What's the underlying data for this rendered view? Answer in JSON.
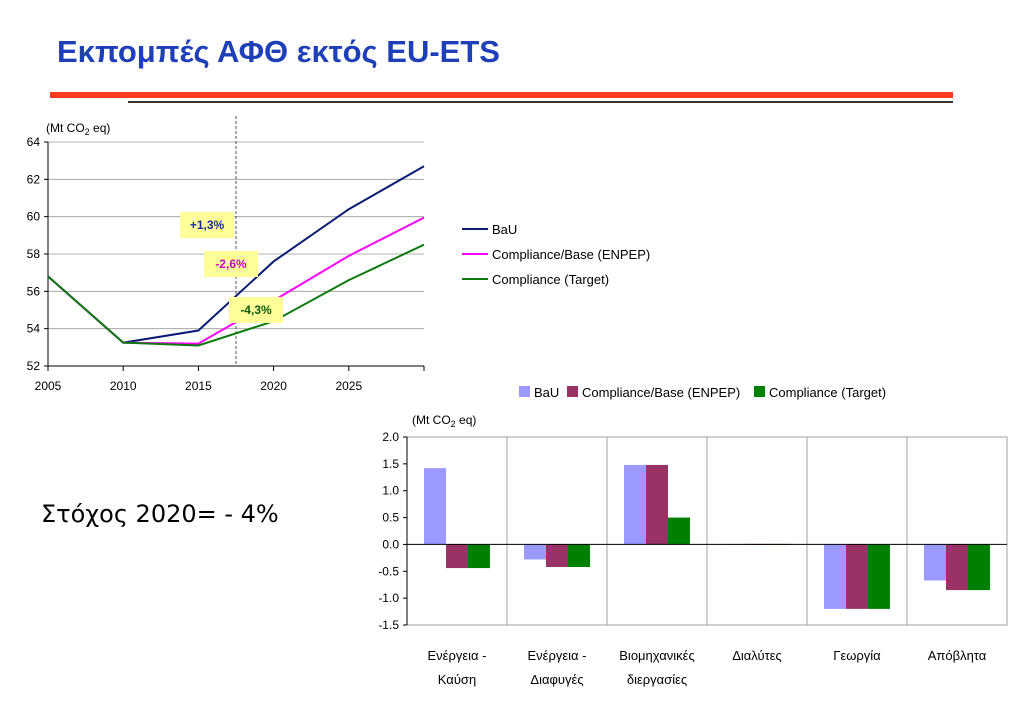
{
  "title": "Εκπομπές ΑΦΘ εκτός EU-ETS",
  "target_note": "Στόχος 2020= - 4%",
  "colors": {
    "title": "#1f3fb8",
    "rule_red": "#ff3b1f"
  },
  "chart_data": [
    {
      "type": "line",
      "unit_label": {
        "prefix": "(Mt CO",
        "sub": "2",
        "suffix": " eq)"
      },
      "x_ticks": [
        "2005",
        "2010",
        "2015",
        "2020",
        "2025"
      ],
      "ylim": [
        52,
        64
      ],
      "xlim": [
        2005,
        2030
      ],
      "y_ticks": [
        "64",
        "62",
        "60",
        "58",
        "56",
        "54",
        "52"
      ],
      "grid": true,
      "marker_year": 2017.5,
      "legend_position": "right",
      "series": [
        {
          "name": "BaU",
          "color": "#0b1a73",
          "x": [
            2005,
            2010,
            2015,
            2020,
            2025,
            2030
          ],
          "values": [
            56.8,
            53.25,
            53.9,
            57.6,
            60.4,
            62.7
          ]
        },
        {
          "name": "Compliance/Base (ENPEP)",
          "color": "#ff00ff",
          "x": [
            2005,
            2010,
            2015,
            2020,
            2025,
            2030
          ],
          "values": [
            56.8,
            53.25,
            53.2,
            55.5,
            57.9,
            59.95
          ]
        },
        {
          "name": "Compliance (Target)",
          "color": "#0d7a0d",
          "x": [
            2005,
            2010,
            2015,
            2020,
            2025,
            2030
          ],
          "values": [
            56.8,
            53.25,
            53.1,
            54.4,
            56.6,
            58.5
          ]
        }
      ],
      "annotations": [
        {
          "text": "+1,3%",
          "color": "#1a2b9a",
          "bg": "#ffff99"
        },
        {
          "text": "-2,6%",
          "color": "#cc00cc",
          "bg": "#ffff99"
        },
        {
          "text": "-4,3%",
          "color": "#0a5c0a",
          "bg": "#ffff99"
        }
      ]
    },
    {
      "type": "bar",
      "unit_label": {
        "prefix": "(Mt CO",
        "sub": "2",
        "suffix": " eq)"
      },
      "categories": [
        [
          "Ενέργεια -",
          "Καύση"
        ],
        [
          "Ενέργεια -",
          "Διαφυγές"
        ],
        [
          "Βιομηχανικές",
          "διεργασίες"
        ],
        [
          "Διαλύτες"
        ],
        [
          "Γεωργία"
        ],
        [
          "Απόβλητα"
        ]
      ],
      "ylim": [
        -1.5,
        2.0
      ],
      "y_ticks": [
        "2.0",
        "1.5",
        "1.0",
        "0.5",
        "0.0",
        "-0.5",
        "-1.0",
        "-1.5"
      ],
      "legend_position": "top",
      "series": [
        {
          "name": "BaU",
          "color": "#9999ff",
          "values": [
            1.42,
            -0.28,
            1.48,
            0.01,
            -1.2,
            -0.67
          ]
        },
        {
          "name": "Compliance/Base (ENPEP)",
          "color": "#993366",
          "values": [
            -0.44,
            -0.42,
            1.48,
            0.01,
            -1.2,
            -0.85
          ]
        },
        {
          "name": "Compliance (Target)",
          "color": "#008000",
          "values": [
            -0.44,
            -0.42,
            0.5,
            0.01,
            -1.2,
            -0.85
          ]
        }
      ]
    }
  ]
}
